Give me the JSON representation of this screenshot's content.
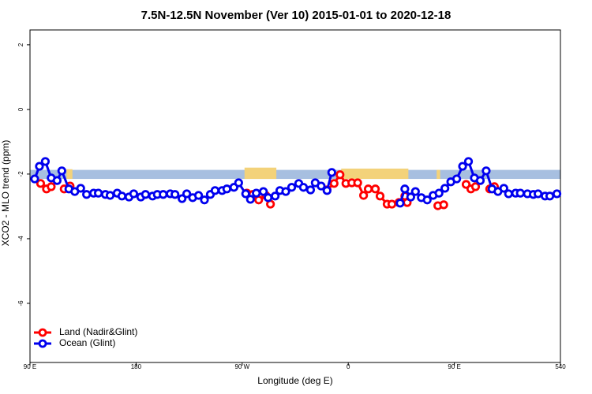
{
  "chart_data": {
    "type": "line",
    "title": "7.5N-12.5N November (Ver 10)   2015-01-01 to 2020-12-18",
    "x_label": "Longitude (deg E)",
    "y_label": "XCO2 - MLO trend (ppm)",
    "xlim": [
      90,
      540
    ],
    "ylim": [
      -7.83,
      2.46
    ],
    "xticks": [
      {
        "value": 90,
        "label": "90 E"
      },
      180,
      {
        "value": 270,
        "label": "90 W"
      },
      {
        "value": 360,
        "label": "0"
      },
      {
        "value": 450,
        "label": "90 E"
      },
      540
    ],
    "yticks": [
      2,
      0,
      -2,
      -4,
      -6
    ],
    "legend": "bottom-left",
    "band": {
      "ylim": [
        -2.15,
        -1.87
      ],
      "color": "#a7bfe0"
    },
    "land_patches": {
      "color": "#f3d27a",
      "x0": [
        121,
        272,
        354,
        435
      ],
      "x1": [
        126,
        299,
        411,
        438
      ],
      "top": [
        -1.85,
        -1.8,
        -1.83,
        -1.87
      ]
    },
    "series": [
      {
        "name": "Land (Nadir&Glint)",
        "color": "#ff0000",
        "x": [
          99,
          104,
          108,
          119,
          124,
          274,
          279,
          284,
          290,
          294,
          342,
          348,
          353,
          358,
          363,
          368,
          373,
          377,
          383,
          387,
          393,
          397,
          403,
          408,
          410,
          436,
          441,
          460,
          464,
          468,
          480,
          484
        ],
        "values": [
          -2.29,
          -2.46,
          -2.39,
          -2.46,
          -2.37,
          -2.59,
          -2.63,
          -2.8,
          -2.66,
          -2.93,
          -2.49,
          -2.29,
          -2.02,
          -2.29,
          -2.27,
          -2.27,
          -2.66,
          -2.46,
          -2.46,
          -2.68,
          -2.93,
          -2.93,
          -2.88,
          -2.68,
          -2.88,
          -2.98,
          -2.95,
          -2.32,
          -2.46,
          -2.39,
          -2.46,
          -2.39
        ]
      },
      {
        "name": "Ocean (Glint)",
        "color": "#0000ee",
        "x": [
          94,
          98,
          103,
          108,
          113,
          117,
          123,
          128,
          133,
          138,
          144,
          148,
          154,
          158,
          164,
          168,
          174,
          178,
          184,
          188,
          194,
          198,
          203,
          209,
          213,
          219,
          223,
          228,
          233,
          238,
          243,
          247,
          253,
          257,
          263,
          267,
          273,
          277,
          282,
          288,
          292,
          298,
          302,
          307,
          312,
          318,
          322,
          328,
          332,
          337,
          342,
          346,
          404,
          408,
          413,
          417,
          422,
          427,
          432,
          437,
          442,
          447,
          452,
          457,
          462,
          467,
          472,
          477,
          482,
          487,
          492,
          496,
          502,
          506,
          512,
          517,
          521,
          527,
          531,
          537
        ],
        "values": [
          -2.15,
          -1.76,
          -1.61,
          -2.12,
          -2.2,
          -1.9,
          -2.46,
          -2.54,
          -2.44,
          -2.63,
          -2.59,
          -2.59,
          -2.63,
          -2.66,
          -2.59,
          -2.68,
          -2.71,
          -2.61,
          -2.71,
          -2.63,
          -2.68,
          -2.63,
          -2.63,
          -2.61,
          -2.63,
          -2.76,
          -2.61,
          -2.73,
          -2.66,
          -2.8,
          -2.63,
          -2.51,
          -2.51,
          -2.46,
          -2.41,
          -2.27,
          -2.61,
          -2.78,
          -2.59,
          -2.54,
          -2.73,
          -2.68,
          -2.51,
          -2.54,
          -2.41,
          -2.29,
          -2.41,
          -2.49,
          -2.27,
          -2.37,
          -2.51,
          -1.95,
          -2.9,
          -2.46,
          -2.71,
          -2.54,
          -2.73,
          -2.8,
          -2.66,
          -2.59,
          -2.44,
          -2.24,
          -2.15,
          -1.76,
          -1.61,
          -2.12,
          -2.2,
          -1.9,
          -2.46,
          -2.54,
          -2.44,
          -2.61,
          -2.59,
          -2.59,
          -2.61,
          -2.63,
          -2.61,
          -2.68,
          -2.68,
          -2.61
        ]
      }
    ]
  }
}
